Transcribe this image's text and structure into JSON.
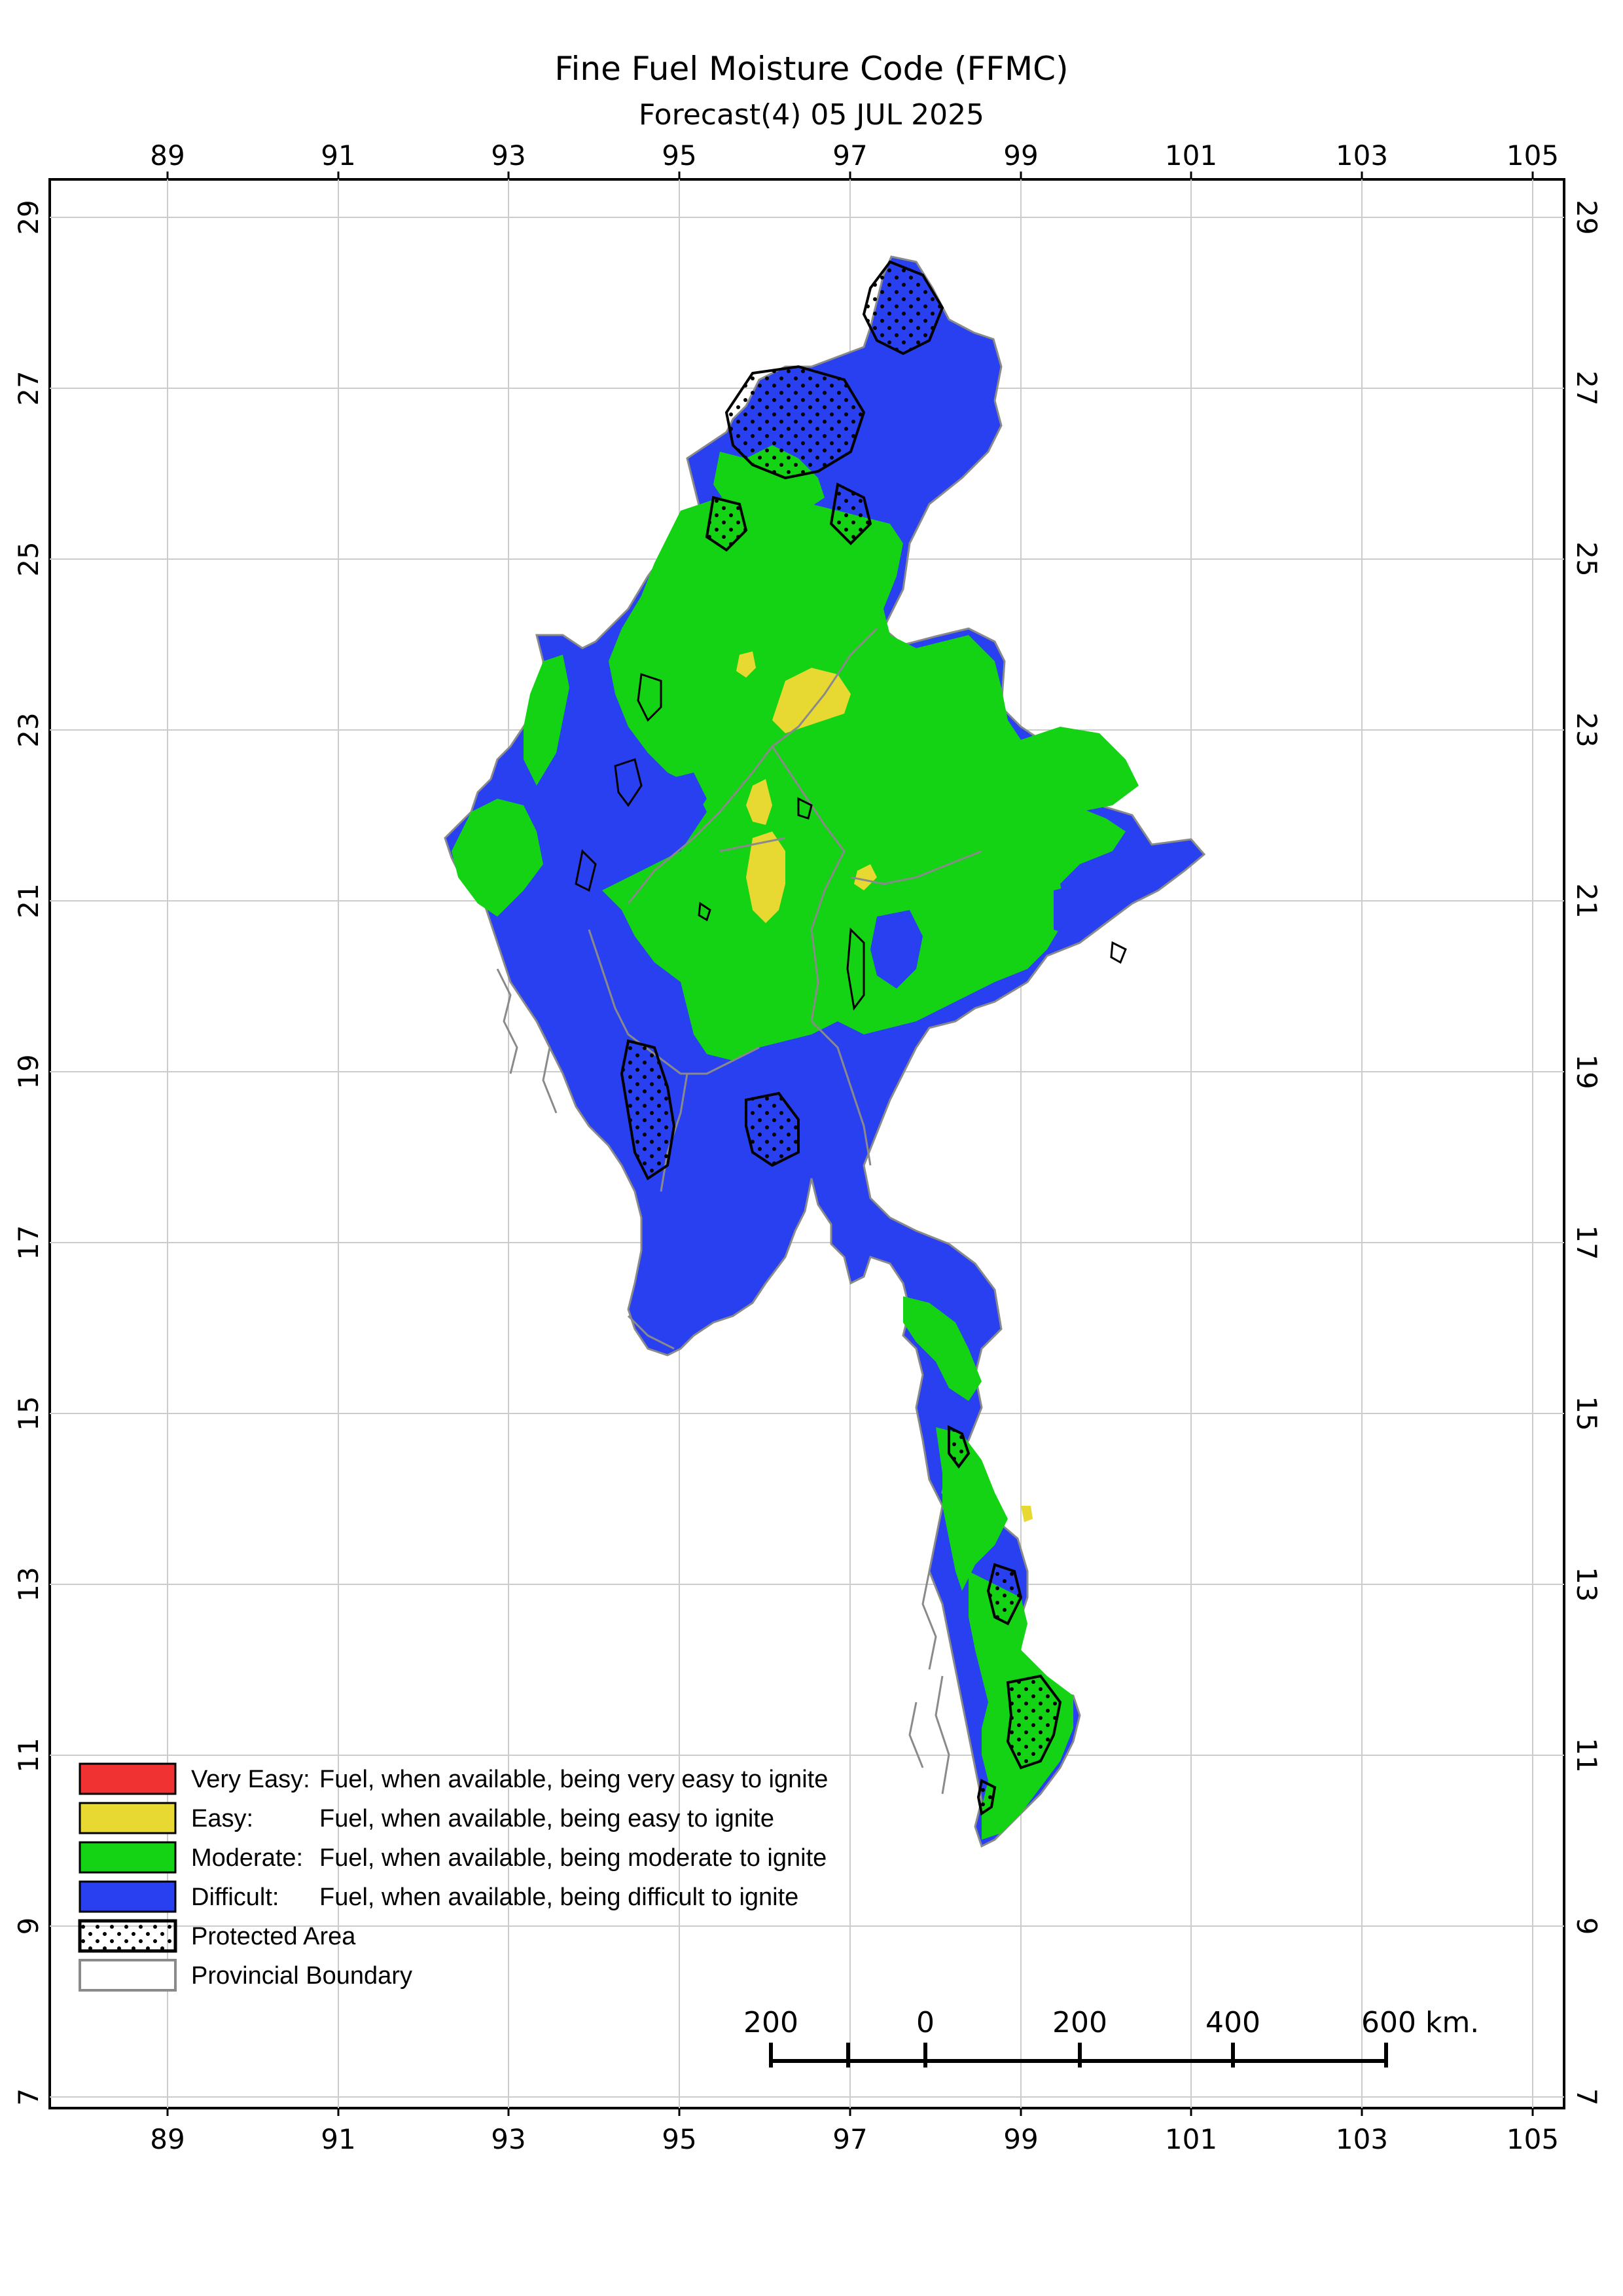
{
  "title": "Fine Fuel Moisture Code (FFMC)",
  "subtitle": "Forecast(4) 05 JUL 2025",
  "axes": {
    "lon_ticks": [
      "89",
      "91",
      "93",
      "95",
      "97",
      "99",
      "101",
      "103",
      "105"
    ],
    "lat_ticks": [
      "29",
      "27",
      "25",
      "23",
      "21",
      "19",
      "17",
      "15",
      "13",
      "11",
      "9",
      "7"
    ]
  },
  "legend": {
    "items": [
      {
        "class": "Very Easy:",
        "desc": "Fuel, when available, being very easy to ignite",
        "color": "#f03232"
      },
      {
        "class": "Easy:",
        "desc": "Fuel, when available, being easy to ignite",
        "color": "#e8d832"
      },
      {
        "class": "Moderate:",
        "desc": "Fuel, when available, being moderate to ignite",
        "color": "#14d214"
      },
      {
        "class": "Difficult:",
        "desc": "Fuel, when available, being difficult to ignite",
        "color": "#2840f0"
      }
    ],
    "protected_area": "Protected Area",
    "provincial_boundary": "Provincial Boundary"
  },
  "scale_bar": {
    "labels": [
      "200",
      "0",
      "200",
      "400",
      "600 km."
    ]
  },
  "colors": {
    "difficult": "#2840f0",
    "moderate": "#14d214",
    "easy": "#e8d832",
    "very_easy": "#f03232",
    "boundary": "#8a8a8a",
    "grid": "#cccccc"
  }
}
